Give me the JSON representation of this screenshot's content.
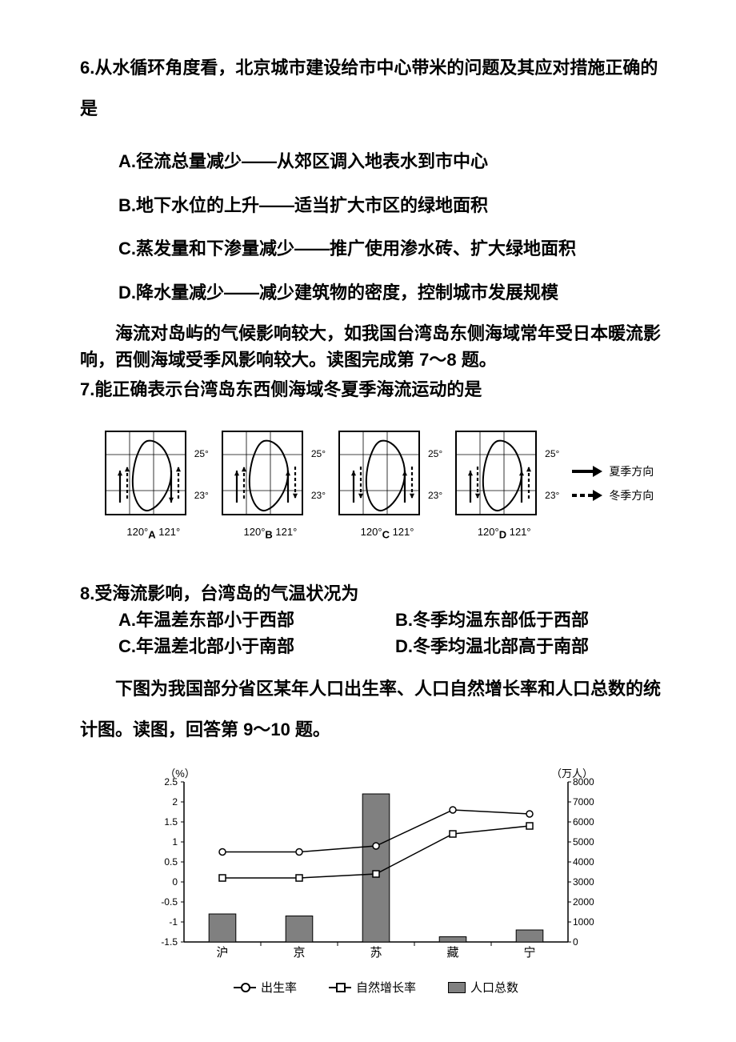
{
  "q6": {
    "stem": "6.从水循环角度看，北京城市建设给市中心带米的问题及其应对措施正确的是",
    "options": {
      "A": "A.径流总量减少——从郊区调入地表水到市中心",
      "B": "B.地下水位的上升——适当扩大市区的绿地面积",
      "C": "C.蒸发量和下渗量减少——推广使用渗水砖、扩大绿地面积",
      "D": "D.降水量减少——减少建筑物的密度，控制城市发展规模"
    }
  },
  "ctx7": "海流对岛屿的气候影响较大，如我国台湾岛东侧海域常年受日本暖流影响，西侧海域受季风影响较大。读图完成第 7～8 题。",
  "q7": {
    "stem": "7.能正确表示台湾岛东西侧海域冬夏季海流运动的是",
    "maps": {
      "lat_lines": [
        "25°",
        "23°"
      ],
      "lon_lines": [
        "120°",
        "121°"
      ],
      "outline_color": "#000000",
      "frame_color": "#000000",
      "panels": [
        {
          "id": "A",
          "west": {
            "summer": "N",
            "winter": "N"
          },
          "east": {
            "summer": "S",
            "winter": "N"
          }
        },
        {
          "id": "B",
          "west": {
            "summer": "N",
            "winter": "N"
          },
          "east": {
            "summer": "N",
            "winter": "S"
          }
        },
        {
          "id": "C",
          "west": {
            "summer": "N",
            "winter": "S"
          },
          "east": {
            "summer": "N",
            "winter": "S"
          }
        },
        {
          "id": "D",
          "west": {
            "summer": "N",
            "winter": "S"
          },
          "east": {
            "summer": "N",
            "winter": "N"
          }
        }
      ],
      "legend": {
        "summer": "夏季方向",
        "winter": "冬季方向"
      }
    }
  },
  "q8": {
    "stem": "8.受海流影响，台湾岛的气温状况为",
    "options": {
      "A": "A.年温差东部小于西部",
      "B": "B.冬季均温东部低于西部",
      "C": "C.年温差北部小于南部",
      "D": "D.冬季均温北部高于南部"
    }
  },
  "ctx9": "下图为我国部分省区某年人口出生率、人口自然增长率和人口总数的统计图。读图，回答第 9～10 题。",
  "chart": {
    "type": "combo-bar-line",
    "categories": [
      "沪",
      "京",
      "苏",
      "藏",
      "宁"
    ],
    "left_axis": {
      "label": "（%）",
      "min": -1.5,
      "max": 2.5,
      "ticks": [
        2.5,
        2,
        1.5,
        1,
        0.5,
        0,
        -0.5,
        -1,
        -1.5
      ]
    },
    "right_axis": {
      "label": "（万人）",
      "min": 0,
      "max": 8000,
      "ticks": [
        8000,
        7000,
        6000,
        5000,
        4000,
        3000,
        2000,
        1000,
        0
      ]
    },
    "series": {
      "birth_rate": {
        "label": "出生率",
        "marker": "open-circle",
        "values": [
          0.75,
          0.75,
          0.9,
          1.8,
          1.7
        ]
      },
      "nat_growth": {
        "label": "自然增长率",
        "marker": "open-square",
        "values": [
          0.1,
          0.1,
          0.2,
          1.2,
          1.4
        ]
      },
      "population": {
        "label": "人口总数",
        "marker": "bar",
        "color": "#808080",
        "values": [
          1400,
          1300,
          7400,
          260,
          600
        ]
      }
    },
    "colors": {
      "axis": "#000000",
      "bar_fill": "#808080",
      "bar_stroke": "#000000",
      "line": "#000000",
      "bg": "#ffffff"
    }
  }
}
